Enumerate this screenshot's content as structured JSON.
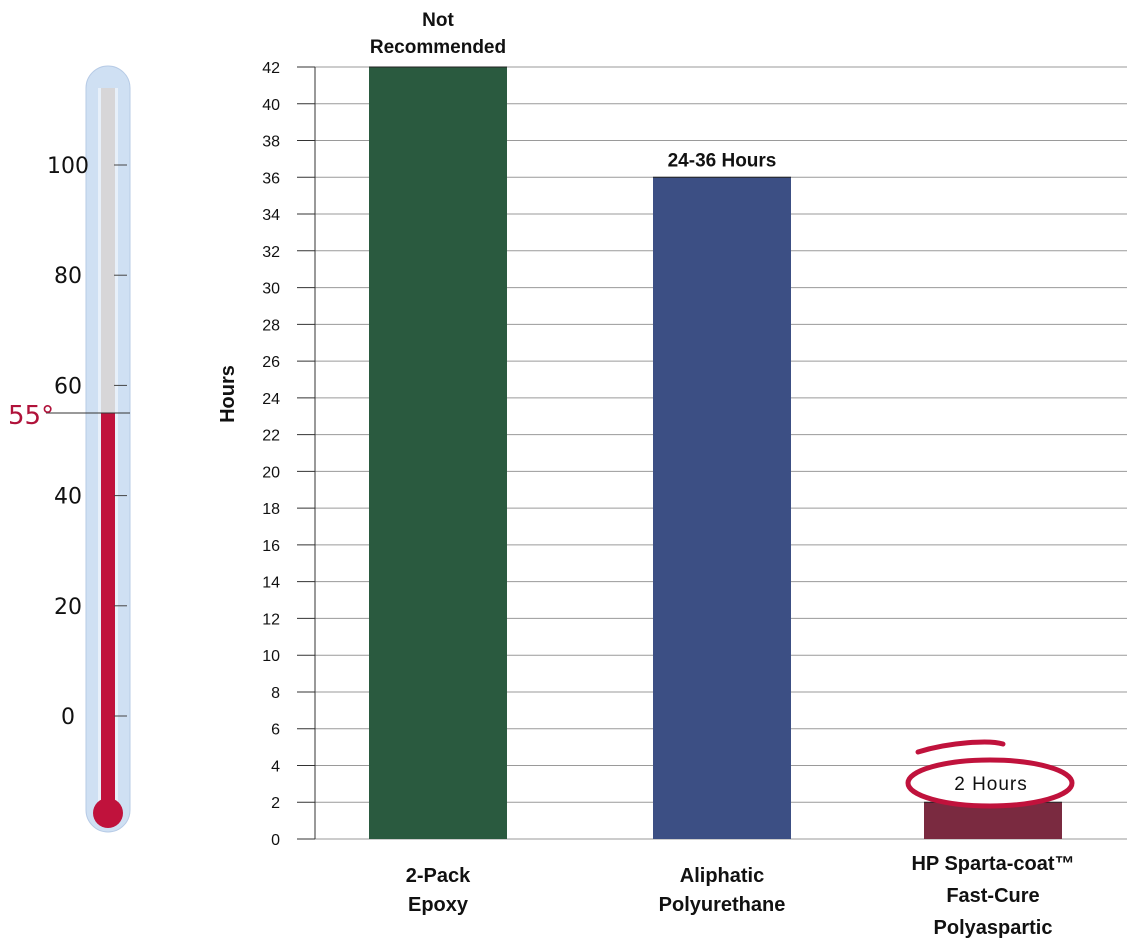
{
  "chart_data": {
    "type": "bar",
    "ylabel": "Hours",
    "xlabel": "",
    "ylim": [
      0,
      42
    ],
    "yticks": [
      0,
      2,
      4,
      6,
      8,
      10,
      12,
      14,
      16,
      18,
      20,
      22,
      24,
      26,
      28,
      30,
      32,
      34,
      36,
      38,
      40,
      42
    ],
    "grid": "horizontal",
    "categories": [
      [
        "2-Pack",
        "Epoxy"
      ],
      [
        "Aliphatic",
        "Polyurethane"
      ],
      [
        "HP Sparta-coat™",
        "Fast-Cure",
        "Polyaspartic"
      ]
    ],
    "values": [
      42,
      36,
      2
    ],
    "data_labels": [
      [
        "Not",
        "Recommended"
      ],
      [
        "24-36 Hours"
      ],
      [
        "2 Hours"
      ]
    ],
    "colors": [
      "#2a5a3f",
      "#3c4f84",
      "#7a2a40"
    ]
  },
  "thermometer": {
    "ticks": [
      "100",
      "80",
      "60",
      "40",
      "20",
      "0"
    ],
    "tick_values": [
      100,
      80,
      60,
      40,
      20,
      0
    ],
    "range": [
      -14,
      114
    ],
    "marker_label": "55°",
    "marker_value": 55,
    "fill_color": "#c0123c",
    "tube_color": "#cfe0f3"
  }
}
